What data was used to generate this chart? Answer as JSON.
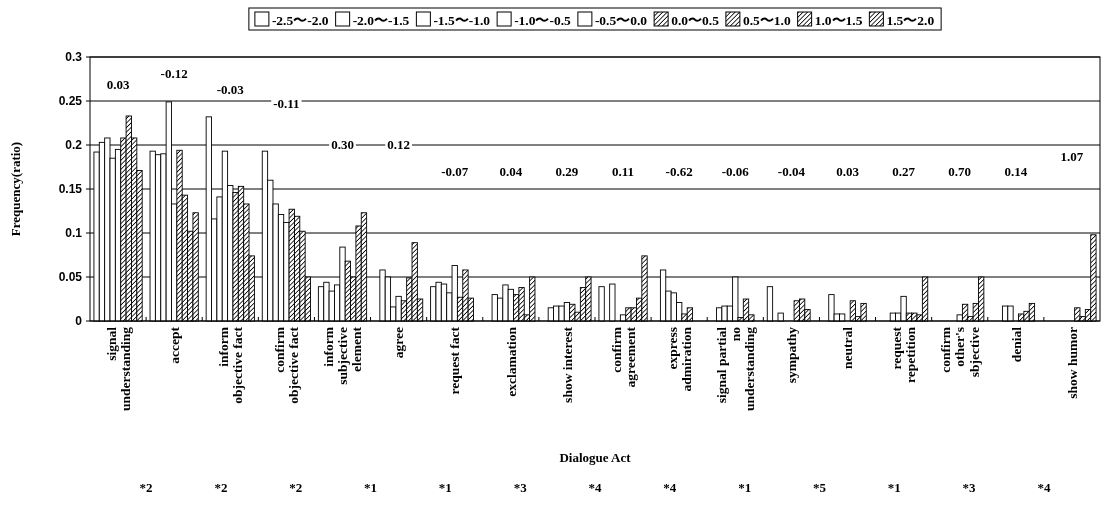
{
  "chart_data": {
    "type": "bar",
    "categories": [
      "signal\nunderstanding",
      "accept",
      "inform\nobjective fact",
      "confirm\nobjective fact",
      "inform\nsubjective\nelement",
      "agree",
      "request fact",
      "exclamation",
      "show interest",
      "confirm\nagreement",
      "express\nadmiration",
      "signal partial\nno\nunderstanding",
      "sympathy",
      "neutral",
      "request\nrepetition",
      "confirm\nother's\nsbjective",
      "denial",
      "show humor"
    ],
    "series": [
      {
        "name": "-2.5〜-2.0",
        "color": "#ffffff",
        "values": [
          0.192,
          0.193,
          0.232,
          0.193,
          0.039,
          0,
          0.039,
          0,
          0,
          0.039,
          0,
          0,
          0.039,
          0,
          0,
          0,
          0,
          0
        ]
      },
      {
        "name": "-2.0〜-1.5",
        "color": "#ffffff",
        "values": [
          0.203,
          0.189,
          0.116,
          0.16,
          0.044,
          0.058,
          0.044,
          0.03,
          0.015,
          0,
          0.058,
          0.015,
          0,
          0.03,
          0,
          0,
          0,
          0
        ]
      },
      {
        "name": "-1.5〜-1.0",
        "color": "#ffffff",
        "values": [
          0.208,
          0.19,
          0.141,
          0.133,
          0.034,
          0.05,
          0.042,
          0.026,
          0.017,
          0.042,
          0.034,
          0.017,
          0.009,
          0.008,
          0.009,
          0,
          0.017,
          0
        ]
      },
      {
        "name": "-1.0〜-0.5",
        "color": "#ffffff",
        "values": [
          0.185,
          0.249,
          0.193,
          0.121,
          0.041,
          0.016,
          0.032,
          0.041,
          0.017,
          0,
          0.032,
          0.017,
          0,
          0.008,
          0.009,
          0,
          0.017,
          0
        ]
      },
      {
        "name": "-0.5〜0.0",
        "color": "#ffffff",
        "values": [
          0.195,
          0.133,
          0.154,
          0.112,
          0.084,
          0.028,
          0.063,
          0.036,
          0.021,
          0.007,
          0.021,
          0.05,
          0,
          0,
          0.028,
          0.007,
          0,
          0
        ]
      },
      {
        "name": "0.0〜0.5",
        "color": "#000000",
        "values": [
          0.208,
          0.194,
          0.146,
          0.127,
          0.068,
          0.023,
          0.027,
          0.03,
          0.019,
          0.015,
          0.008,
          0.004,
          0.023,
          0.023,
          0.009,
          0.019,
          0.008,
          0.015
        ]
      },
      {
        "name": "0.5〜1.0",
        "color": "#000000",
        "values": [
          0.233,
          0.143,
          0.153,
          0.119,
          0.05,
          0.049,
          0.058,
          0.038,
          0.01,
          0.015,
          0.015,
          0.025,
          0.025,
          0.005,
          0.009,
          0.005,
          0.011,
          0.005
        ]
      },
      {
        "name": "1.0〜1.5",
        "color": "#000000",
        "values": [
          0.208,
          0.102,
          0.133,
          0.102,
          0.108,
          0.089,
          0.026,
          0.007,
          0.038,
          0.026,
          0,
          0.007,
          0.013,
          0.02,
          0.007,
          0.02,
          0.02,
          0.013
        ]
      },
      {
        "name": "1.5〜2.0",
        "color": "#000000",
        "values": [
          0.171,
          0.123,
          0.074,
          0.05,
          0.123,
          0.025,
          0,
          0.05,
          0.05,
          0.074,
          0,
          0,
          0,
          0,
          0.05,
          0.05,
          0,
          0.098
        ]
      }
    ],
    "xlabel": "Dialogue Act",
    "ylabel": "Frequency(ratio)",
    "ylim": [
      0,
      0.3
    ],
    "yticks": [
      0,
      0.05,
      0.1,
      0.15,
      0.2,
      0.25,
      0.3
    ],
    "grid": "y",
    "legend": "top",
    "annotations": [
      {
        "text": "0.03",
        "x": "signal\nunderstanding",
        "y": 0.269
      },
      {
        "text": "-0.12",
        "x": "accept",
        "y": 0.281
      },
      {
        "text": "-0.03",
        "x": "inform\nobjective fact",
        "y": 0.263
      },
      {
        "text": "-0.11",
        "x": "confirm\nobjective fact",
        "y": 0.247
      },
      {
        "text": "0.30",
        "x": "inform\nsubjective\nelement",
        "y": 0.201
      },
      {
        "text": "0.12",
        "x": "agree",
        "y": 0.201
      },
      {
        "text": "-0.07",
        "x": "request fact",
        "y": 0.17
      },
      {
        "text": "0.04",
        "x": "exclamation",
        "y": 0.17
      },
      {
        "text": "0.29",
        "x": "show interest",
        "y": 0.17
      },
      {
        "text": "0.11",
        "x": "confirm\nagreement",
        "y": 0.17
      },
      {
        "text": "-0.62",
        "x": "express\nadmiration",
        "y": 0.17
      },
      {
        "text": "-0.06",
        "x": "signal partial\nno\nunderstanding",
        "y": 0.17
      },
      {
        "text": "-0.04",
        "x": "sympathy",
        "y": 0.17
      },
      {
        "text": "0.03",
        "x": "neutral",
        "y": 0.17
      },
      {
        "text": "0.27",
        "x": "request\nrepetition",
        "y": 0.17
      },
      {
        "text": "0.70",
        "x": "confirm\nother's\nsbjective",
        "y": 0.17
      },
      {
        "text": "0.14",
        "x": "denial",
        "y": 0.17
      },
      {
        "text": "1.07",
        "x": "show humor",
        "y": 0.187
      },
      "*2",
      "*2",
      "*2",
      "*1",
      "*1",
      "*3",
      "*4",
      "*4",
      "*1",
      "*5",
      "*1",
      "*3",
      "*4"
    ]
  }
}
